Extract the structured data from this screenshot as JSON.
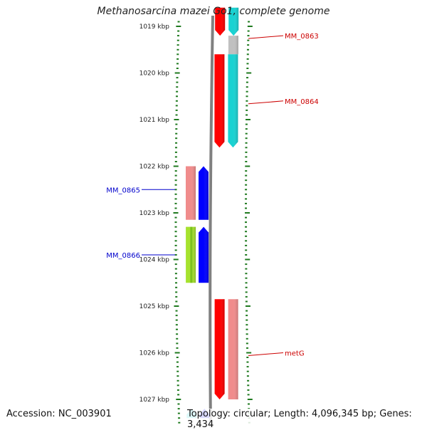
{
  "title": "Methanosarcina mazei Go1, complete genome",
  "accession": "Accession: NC_003901",
  "summary": "Topology: circular; Length: 4,096,345 bp; Genes: 3,434",
  "colors": {
    "tick": "#1f7a1f",
    "backbone": "#808080",
    "red": "#ff0000",
    "cyan": "#19d2d2",
    "gray": "#c0c0c0",
    "salmon": "#f08c8c",
    "blue": "#0000ff",
    "lime": "#a6e22e",
    "label_red": "#cc0000",
    "label_blue": "#0000cc"
  },
  "axis": {
    "unit": "kbp",
    "ticks": [
      {
        "kbp": 1019,
        "label": "1019 kbp"
      },
      {
        "kbp": 1020,
        "label": "1020 kbp"
      },
      {
        "kbp": 1021,
        "label": "1021 kbp"
      },
      {
        "kbp": 1022,
        "label": "1022 kbp"
      },
      {
        "kbp": 1023,
        "label": "1023 kbp"
      },
      {
        "kbp": 1024,
        "label": "1024 kbp"
      },
      {
        "kbp": 1025,
        "label": "1025 kbp"
      },
      {
        "kbp": 1026,
        "label": "1026 kbp"
      },
      {
        "kbp": 1027,
        "label": "1027 kbp"
      }
    ]
  },
  "features": [
    {
      "id": "f1",
      "label": "MM_0863",
      "strand": "+",
      "start_kbp": 1018.6,
      "end_kbp": 1019.2,
      "color": "red",
      "track": "plus-1"
    },
    {
      "id": "f2",
      "label": "",
      "strand": "+",
      "start_kbp": 1018.6,
      "end_kbp": 1019.2,
      "color": "cyan",
      "track": "plus-2"
    },
    {
      "id": "f3",
      "label": "",
      "strand": "+",
      "start_kbp": 1019.2,
      "end_kbp": 1019.6,
      "color": "gray",
      "track": "plus-2"
    },
    {
      "id": "f4",
      "label": "MM_0864",
      "strand": "+",
      "start_kbp": 1019.6,
      "end_kbp": 1021.6,
      "color": "red",
      "track": "plus-1"
    },
    {
      "id": "f5",
      "label": "",
      "strand": "+",
      "start_kbp": 1019.6,
      "end_kbp": 1021.6,
      "color": "cyan",
      "track": "plus-2"
    },
    {
      "id": "f6",
      "label": "MM_0865",
      "strand": "-",
      "start_kbp": 1022.0,
      "end_kbp": 1023.15,
      "color": "salmon",
      "track": "minus-2"
    },
    {
      "id": "f7",
      "label": "",
      "strand": "-",
      "start_kbp": 1022.0,
      "end_kbp": 1023.15,
      "color": "blue",
      "track": "minus-1"
    },
    {
      "id": "f8",
      "label": "MM_0866",
      "strand": "-",
      "start_kbp": 1023.3,
      "end_kbp": 1024.5,
      "color": "lime",
      "track": "minus-2"
    },
    {
      "id": "f9",
      "label": "",
      "strand": "-",
      "start_kbp": 1023.3,
      "end_kbp": 1024.5,
      "color": "blue",
      "track": "minus-1"
    },
    {
      "id": "f10",
      "label": "metG",
      "strand": "+",
      "start_kbp": 1024.85,
      "end_kbp": 1027.0,
      "color": "red",
      "track": "plus-1"
    },
    {
      "id": "f11",
      "label": "",
      "strand": "+",
      "start_kbp": 1024.85,
      "end_kbp": 1027.0,
      "color": "salmon",
      "track": "plus-2"
    },
    {
      "id": "f12",
      "label": "",
      "strand": "-",
      "start_kbp": 1027.2,
      "end_kbp": 1027.4,
      "color": "cyan",
      "track": "minus-2"
    },
    {
      "id": "f13",
      "label": "",
      "strand": "-",
      "start_kbp": 1027.2,
      "end_kbp": 1027.4,
      "color": "blue",
      "track": "minus-1"
    }
  ],
  "labels": [
    {
      "text": "MM_0863",
      "side": "right",
      "kbp": 1019.2,
      "color": "label_red"
    },
    {
      "text": "MM_0864",
      "side": "right",
      "kbp": 1020.6,
      "color": "label_red"
    },
    {
      "text": "MM_0865",
      "side": "left",
      "kbp": 1022.5,
      "color": "label_blue"
    },
    {
      "text": "MM_0866",
      "side": "left",
      "kbp": 1023.9,
      "color": "label_blue"
    },
    {
      "text": "metG",
      "side": "right",
      "kbp": 1026.0,
      "color": "label_red"
    }
  ]
}
